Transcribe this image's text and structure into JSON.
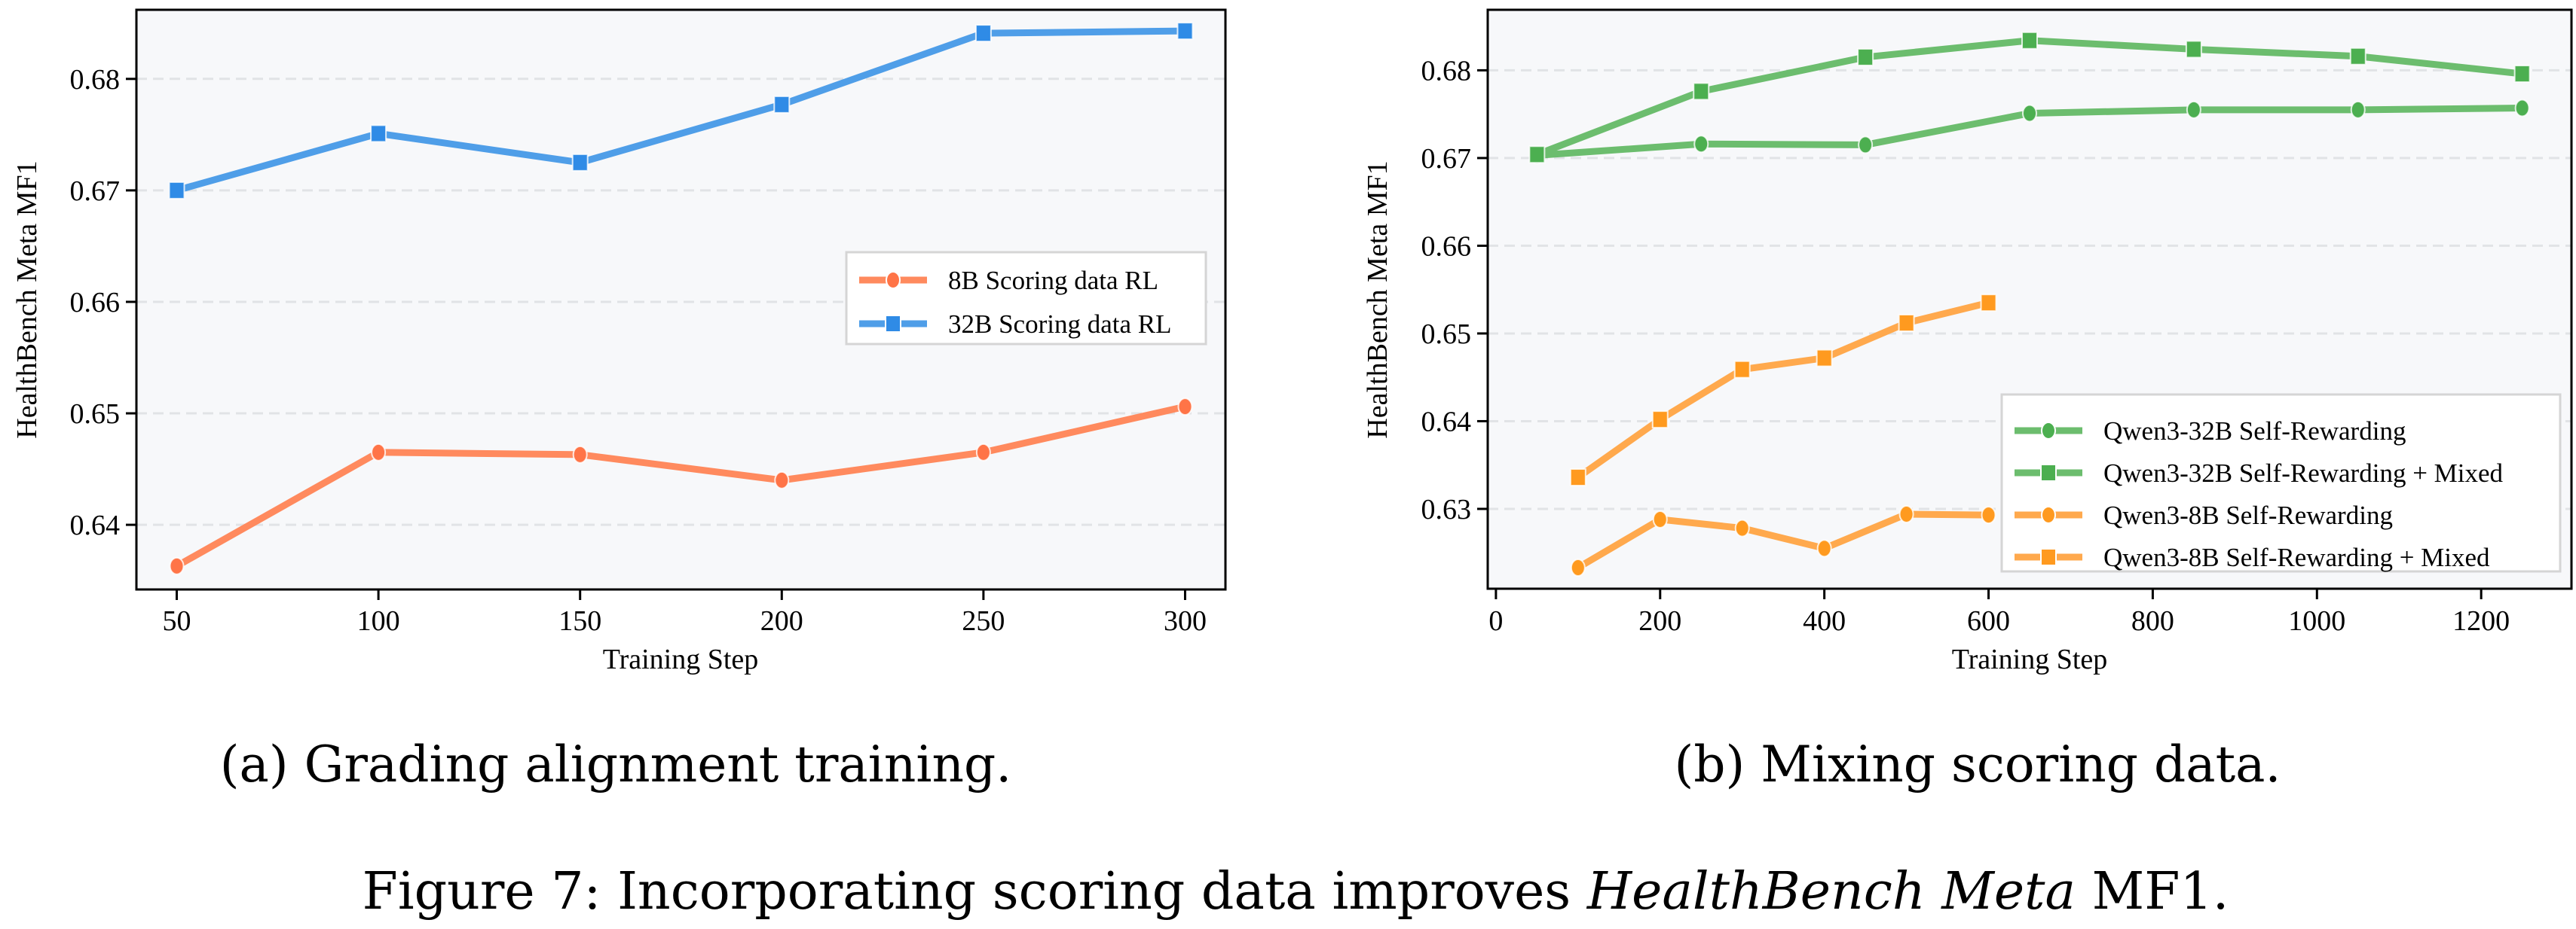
{
  "figure_caption": {
    "prefix": "Figure 7: Incorporating scoring data improves ",
    "italic": "HealthBench Meta",
    "suffix": " MF1."
  },
  "chart_data": [
    {
      "id": "a",
      "type": "line",
      "subcaption": "(a) Grading alignment training.",
      "title": "",
      "xlabel": "Training Step",
      "ylabel": "HealthBench Meta MF1",
      "xlim": [
        40,
        310
      ],
      "ylim": [
        0.6342,
        0.6862
      ],
      "xticks": [
        50,
        100,
        150,
        200,
        250,
        300
      ],
      "xtick_labels": [
        "50",
        "100",
        "150",
        "200",
        "250",
        "300"
      ],
      "yticks": [
        0.64,
        0.65,
        0.66,
        0.67,
        0.68
      ],
      "ytick_labels": [
        "0.64",
        "0.65",
        "0.66",
        "0.67",
        "0.68"
      ],
      "grid": "y-dashed",
      "legend_position": "center-right",
      "x": [
        50,
        100,
        150,
        200,
        250,
        300
      ],
      "series": [
        {
          "name": "8B Scoring data RL",
          "marker": "circle",
          "color": "#ff8a5e",
          "marker_color": "#ff7447",
          "values": [
            0.6363,
            0.6465,
            0.6463,
            0.644,
            0.6465,
            0.6506
          ]
        },
        {
          "name": "32B Scoring data RL",
          "marker": "square",
          "color": "#4f9ee8",
          "marker_color": "#2f8be6",
          "values": [
            0.67,
            0.6751,
            0.6725,
            0.6777,
            0.6841,
            0.6843
          ]
        }
      ]
    },
    {
      "id": "b",
      "type": "line",
      "subcaption": "(b) Mixing scoring data.",
      "title": "",
      "xlabel": "Training Step",
      "ylabel": "HealthBench Meta MF1",
      "xlim": [
        -10,
        1310
      ],
      "ylim": [
        0.6209,
        0.6869
      ],
      "xticks": [
        0,
        200,
        400,
        600,
        800,
        1000,
        1200
      ],
      "xtick_labels": [
        "0",
        "200",
        "400",
        "600",
        "800",
        "1000",
        "1200"
      ],
      "yticks": [
        0.63,
        0.64,
        0.65,
        0.66,
        0.67,
        0.68
      ],
      "ytick_labels": [
        "0.63",
        "0.64",
        "0.65",
        "0.66",
        "0.67",
        "0.68"
      ],
      "grid": "y-dashed",
      "legend_position": "lower-right",
      "series": [
        {
          "name": "Qwen3-32B Self-Rewarding",
          "marker": "circle",
          "color": "#6cbd6e",
          "marker_color": "#4caf50",
          "x": [
            50,
            250,
            450,
            650,
            850,
            1050,
            1250
          ],
          "values": [
            0.6703,
            0.6716,
            0.6715,
            0.6751,
            0.6755,
            0.6755,
            0.6757
          ]
        },
        {
          "name": "Qwen3-32B Self-Rewarding + Mixed",
          "marker": "square",
          "color": "#6cbd6e",
          "marker_color": "#4caf50",
          "x": [
            50,
            250,
            450,
            650,
            850,
            1050,
            1250
          ],
          "values": [
            0.6704,
            0.6776,
            0.6815,
            0.6834,
            0.6824,
            0.6816,
            0.6796
          ]
        },
        {
          "name": "Qwen3-8B Self-Rewarding",
          "marker": "circle",
          "color": "#ffa94d",
          "marker_color": "#ff9a1f",
          "x": [
            100,
            200,
            300,
            400,
            500,
            600
          ],
          "values": [
            0.6233,
            0.6288,
            0.6278,
            0.6255,
            0.6294,
            0.6293
          ]
        },
        {
          "name": "Qwen3-8B Self-Rewarding + Mixed",
          "marker": "square",
          "color": "#ffa94d",
          "marker_color": "#ff9a1f",
          "x": [
            100,
            200,
            300,
            400,
            500,
            600
          ],
          "values": [
            0.6336,
            0.6402,
            0.6459,
            0.6472,
            0.6512,
            0.6535
          ]
        }
      ]
    }
  ]
}
